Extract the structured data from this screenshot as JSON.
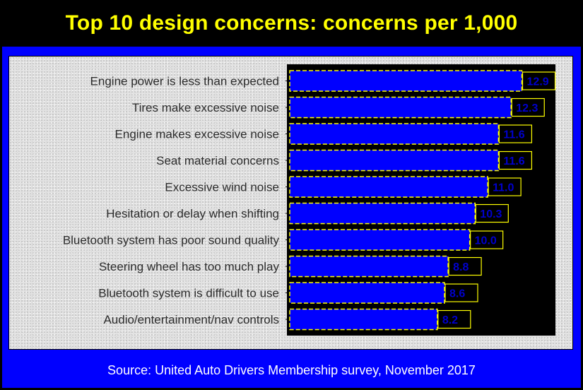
{
  "title": "Top 10 design concerns: concerns per 1,000",
  "source": "Source: United Auto Drivers Membership survey, November 2017",
  "colors": {
    "bar": "#0000ff",
    "bar_border": "#ffff00",
    "plot_background": "#000000",
    "frame": "#0000ff",
    "title": "#ffff00",
    "value_label": "#0000cc"
  },
  "chart_data": {
    "type": "bar",
    "orientation": "horizontal",
    "title": "Top 10 design concerns: concerns per 1,000",
    "xlabel": "",
    "ylabel": "",
    "xlim": [
      0,
      15
    ],
    "grid": false,
    "categories": [
      "Engine power is less than expected",
      "Tires make excessive noise",
      "Engine makes excessive noise",
      "Seat material concerns",
      "Excessive wind noise",
      "Hesitation or delay when shifting",
      "Bluetooth system has poor sound quality",
      "Steering wheel has too much play",
      "Bluetooth system is difficult to use",
      "Audio/entertainment/nav controls"
    ],
    "values": [
      12.9,
      12.3,
      11.6,
      11.6,
      11.0,
      10.3,
      10.0,
      8.8,
      8.6,
      8.2
    ],
    "value_labels": [
      "12.9",
      "12.3",
      "11.6",
      "11.6",
      "11.0",
      "10.3",
      "10.0",
      "8.8",
      "8.6",
      "8.2"
    ]
  }
}
